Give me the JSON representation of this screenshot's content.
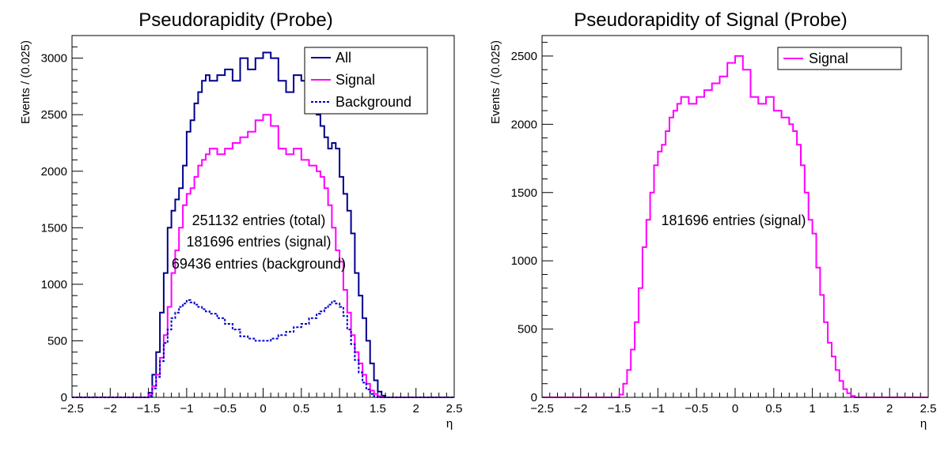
{
  "chart_data": [
    {
      "type": "line",
      "title": "Pseudorapidity (Probe)",
      "xlabel": "η",
      "ylabel": "Events / (0.025)",
      "xlim": [
        -2.5,
        2.5
      ],
      "ylim": [
        0,
        3200
      ],
      "x_ticks": [
        -2.5,
        -2,
        -1.5,
        -1,
        -0.5,
        0,
        0.5,
        1,
        1.5,
        2,
        2.5
      ],
      "x_tick_labels": [
        "−2.5",
        "−2",
        "−1.5",
        "−1",
        "−0.5",
        "0",
        "0.5",
        "1",
        "1.5",
        "2",
        "2.5"
      ],
      "y_ticks": [
        0,
        500,
        1000,
        1500,
        2000,
        2500,
        3000
      ],
      "y_tick_labels": [
        "0",
        "500",
        "1000",
        "1500",
        "2000",
        "2500",
        "3000"
      ],
      "legend_position": "top-right",
      "x": [
        -2.5,
        -1.6,
        -1.5,
        -1.45,
        -1.4,
        -1.35,
        -1.3,
        -1.25,
        -1.2,
        -1.15,
        -1.1,
        -1.05,
        -1.0,
        -0.95,
        -0.9,
        -0.85,
        -0.8,
        -0.75,
        -0.7,
        -0.6,
        -0.5,
        -0.4,
        -0.3,
        -0.2,
        -0.1,
        0.0,
        0.1,
        0.2,
        0.3,
        0.4,
        0.5,
        0.6,
        0.7,
        0.75,
        0.8,
        0.85,
        0.9,
        0.95,
        1.0,
        1.05,
        1.1,
        1.15,
        1.2,
        1.25,
        1.3,
        1.35,
        1.4,
        1.45,
        1.5,
        1.55,
        1.6,
        2.5
      ],
      "series": [
        {
          "name": "All",
          "color": "#00008b",
          "style": "solid",
          "values": [
            0,
            0,
            40,
            200,
            400,
            750,
            1100,
            1500,
            1650,
            1750,
            1850,
            2050,
            2350,
            2450,
            2600,
            2700,
            2800,
            2850,
            2800,
            2850,
            2900,
            2800,
            3000,
            2900,
            3000,
            3050,
            3000,
            2800,
            2700,
            2850,
            2800,
            2600,
            2500,
            2400,
            2300,
            2200,
            2250,
            2200,
            1950,
            1800,
            1650,
            1450,
            1100,
            900,
            700,
            500,
            300,
            150,
            50,
            15,
            0,
            0
          ]
        },
        {
          "name": "Signal",
          "color": "#ff00ff",
          "style": "solid",
          "values": [
            0,
            0,
            20,
            100,
            200,
            350,
            550,
            800,
            1100,
            1300,
            1500,
            1700,
            1800,
            1850,
            1950,
            2050,
            2100,
            2150,
            2200,
            2150,
            2200,
            2250,
            2300,
            2350,
            2450,
            2500,
            2400,
            2200,
            2150,
            2200,
            2100,
            2050,
            2000,
            1950,
            1850,
            1700,
            1500,
            1300,
            1200,
            950,
            750,
            550,
            400,
            300,
            200,
            120,
            60,
            30,
            10,
            0,
            0,
            0
          ]
        },
        {
          "name": "Background",
          "color": "#0000cd",
          "style": "dotted",
          "values": [
            0,
            0,
            10,
            80,
            180,
            320,
            480,
            600,
            700,
            750,
            800,
            830,
            860,
            840,
            820,
            800,
            780,
            760,
            740,
            700,
            650,
            600,
            540,
            520,
            500,
            500,
            520,
            550,
            580,
            620,
            650,
            700,
            740,
            760,
            790,
            820,
            850,
            830,
            800,
            720,
            600,
            470,
            330,
            220,
            130,
            70,
            30,
            10,
            0,
            0,
            0,
            0
          ]
        }
      ],
      "annotations": [
        "251132 entries (total)",
        "181696 entries (signal)",
        "69436 entries (background)"
      ]
    },
    {
      "type": "line",
      "title": "Pseudorapidity of Signal (Probe)",
      "xlabel": "η",
      "ylabel": "Events / (0.025)",
      "xlim": [
        -2.5,
        2.5
      ],
      "ylim": [
        0,
        2650
      ],
      "x_ticks": [
        -2.5,
        -2,
        -1.5,
        -1,
        -0.5,
        0,
        0.5,
        1,
        1.5,
        2,
        2.5
      ],
      "x_tick_labels": [
        "−2.5",
        "−2",
        "−1.5",
        "−1",
        "−0.5",
        "0",
        "0.5",
        "1",
        "1.5",
        "2",
        "2.5"
      ],
      "y_ticks": [
        0,
        500,
        1000,
        1500,
        2000,
        2500
      ],
      "y_tick_labels": [
        "0",
        "500",
        "1000",
        "1500",
        "2000",
        "2500"
      ],
      "legend_position": "top-right",
      "x": [
        -2.5,
        -1.6,
        -1.5,
        -1.45,
        -1.4,
        -1.35,
        -1.3,
        -1.25,
        -1.2,
        -1.15,
        -1.1,
        -1.05,
        -1.0,
        -0.95,
        -0.9,
        -0.85,
        -0.8,
        -0.75,
        -0.7,
        -0.6,
        -0.5,
        -0.4,
        -0.3,
        -0.2,
        -0.1,
        0.0,
        0.1,
        0.2,
        0.3,
        0.4,
        0.5,
        0.6,
        0.7,
        0.75,
        0.8,
        0.85,
        0.9,
        0.95,
        1.0,
        1.05,
        1.1,
        1.15,
        1.2,
        1.25,
        1.3,
        1.35,
        1.4,
        1.45,
        1.5,
        1.55,
        1.6,
        2.5
      ],
      "series": [
        {
          "name": "Signal",
          "color": "#ff00ff",
          "style": "solid",
          "values": [
            0,
            0,
            20,
            100,
            200,
            350,
            550,
            800,
            1100,
            1300,
            1500,
            1700,
            1800,
            1850,
            1950,
            2050,
            2100,
            2150,
            2200,
            2150,
            2200,
            2250,
            2300,
            2350,
            2450,
            2500,
            2400,
            2200,
            2150,
            2200,
            2100,
            2050,
            2000,
            1950,
            1850,
            1700,
            1500,
            1300,
            1200,
            950,
            750,
            550,
            400,
            300,
            200,
            120,
            60,
            30,
            10,
            0,
            0,
            0
          ]
        }
      ],
      "annotations": [
        "181696 entries (signal)"
      ]
    }
  ]
}
